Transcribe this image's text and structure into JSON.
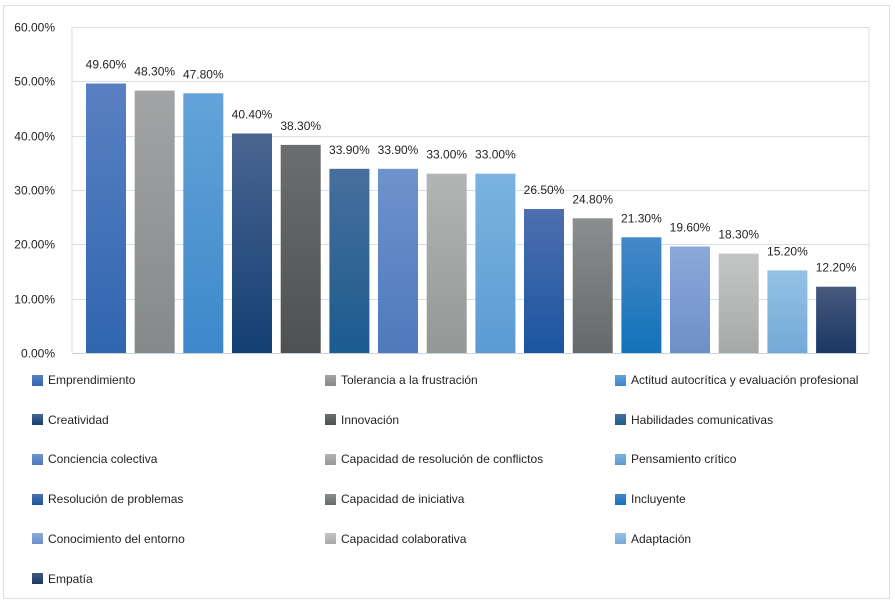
{
  "chart_data": {
    "type": "bar",
    "title": "",
    "xlabel": "",
    "ylabel": "",
    "ylim": [
      0,
      60
    ],
    "yticks": [
      0,
      10,
      20,
      30,
      40,
      50,
      60
    ],
    "ytick_labels": [
      "0.00%",
      "10.00%",
      "20.00%",
      "30.00%",
      "40.00%",
      "50.00%",
      "60.00%"
    ],
    "grid": true,
    "legend_position": "bottom",
    "categories": [
      "Emprendimiento",
      "Tolerancia a la frustración",
      "Actitud autocrítica y evaluación profesional",
      "Creatividad",
      "Innovación",
      "Habilidades comunicativas",
      "Conciencia colectiva",
      "Capacidad de resolución de conflictos",
      "Pensamiento crítico",
      "Resolución de problemas",
      "Capacidad de iniciativa",
      "Incluyente",
      "Conocimiento del entorno",
      "Capacidad colaborativa",
      "Adaptación",
      "Empatía"
    ],
    "values": [
      49.6,
      48.3,
      47.8,
      40.4,
      38.3,
      33.9,
      33.9,
      33.0,
      33.0,
      26.5,
      24.8,
      21.3,
      19.6,
      18.3,
      15.2,
      12.2
    ],
    "value_labels": [
      "49.60%",
      "48.30%",
      "47.80%",
      "40.40%",
      "38.30%",
      "33.90%",
      "33.90%",
      "33.00%",
      "33.00%",
      "26.50%",
      "24.80%",
      "21.30%",
      "19.60%",
      "18.30%",
      "15.20%",
      "12.20%"
    ],
    "colors": [
      {
        "top": "#5a80c2",
        "bottom": "#2f66b0"
      },
      {
        "top": "#a2a4a5",
        "bottom": "#86898a"
      },
      {
        "top": "#63a3d8",
        "bottom": "#3d88ca"
      },
      {
        "top": "#4a6591",
        "bottom": "#133f73"
      },
      {
        "top": "#6b6e6f",
        "bottom": "#4e5152"
      },
      {
        "top": "#476f9c",
        "bottom": "#1b5b8f"
      },
      {
        "top": "#6f93cc",
        "bottom": "#4e79bc"
      },
      {
        "top": "#b3b5b5",
        "bottom": "#959797"
      },
      {
        "top": "#7ab3e0",
        "bottom": "#5b9bd2"
      },
      {
        "top": "#4f6fb0",
        "bottom": "#1a55a0"
      },
      {
        "top": "#8b8e8f",
        "bottom": "#66696a"
      },
      {
        "top": "#4588c8",
        "bottom": "#1372b8"
      },
      {
        "top": "#8ba9d9",
        "bottom": "#6d8fc8"
      },
      {
        "top": "#c4c6c6",
        "bottom": "#a7a9a9"
      },
      {
        "top": "#94c2e6",
        "bottom": "#74aad6"
      },
      {
        "top": "#465a7d",
        "bottom": "#1a3763"
      }
    ]
  }
}
